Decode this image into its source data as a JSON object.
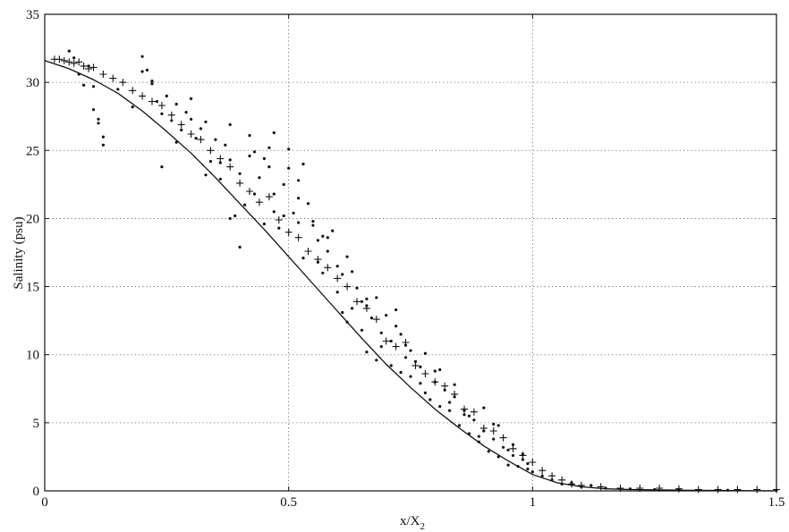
{
  "chart_data": {
    "type": "scatter",
    "title": "",
    "xlabel_main": "x/X",
    "xlabel_sub": "2",
    "ylabel": "Salinity (psu)",
    "xlim": [
      0,
      1.5
    ],
    "ylim": [
      0,
      35
    ],
    "grid": true,
    "x_ticks": [
      0,
      0.5,
      1,
      1.5
    ],
    "x_tick_labels": [
      "0",
      "0.5",
      "1",
      "1.5"
    ],
    "y_ticks": [
      0,
      5,
      10,
      15,
      20,
      25,
      30,
      35
    ],
    "y_tick_labels": [
      "0",
      "5",
      "10",
      "15",
      "20",
      "25",
      "30",
      "35"
    ],
    "curve": {
      "x": [
        0,
        0.05,
        0.1,
        0.15,
        0.2,
        0.25,
        0.3,
        0.35,
        0.4,
        0.45,
        0.5,
        0.55,
        0.6,
        0.65,
        0.7,
        0.75,
        0.8,
        0.85,
        0.9,
        0.95,
        1.0,
        1.05,
        1.1,
        1.15,
        1.2,
        1.3,
        1.4,
        1.5
      ],
      "y": [
        31.6,
        31.0,
        30.2,
        29.2,
        27.9,
        26.4,
        24.8,
        23.0,
        21.1,
        19.2,
        17.2,
        15.2,
        13.2,
        11.2,
        9.3,
        7.6,
        6.0,
        4.6,
        3.3,
        2.2,
        1.2,
        0.6,
        0.3,
        0.15,
        0.1,
        0.05,
        0.02,
        0.0
      ]
    },
    "series": [
      {
        "marker": "plus",
        "x": [
          0.02,
          0.03,
          0.04,
          0.05,
          0.06,
          0.07,
          0.08,
          0.09,
          0.1,
          0.12,
          0.14,
          0.16,
          0.18,
          0.2,
          0.22,
          0.24,
          0.26,
          0.28,
          0.3,
          0.32,
          0.34,
          0.36,
          0.38,
          0.4,
          0.42,
          0.44,
          0.46,
          0.48,
          0.5,
          0.52,
          0.54,
          0.56,
          0.58,
          0.6,
          0.62,
          0.64,
          0.66,
          0.68,
          0.7,
          0.72,
          0.74,
          0.76,
          0.78,
          0.8,
          0.82,
          0.84,
          0.86,
          0.88,
          0.9,
          0.92,
          0.94,
          0.96,
          0.98,
          1.0,
          1.02,
          1.04,
          1.06,
          1.08,
          1.1,
          1.14,
          1.18,
          1.22,
          1.26,
          1.3,
          1.34,
          1.38,
          1.42,
          1.46,
          1.5
        ],
        "y": [
          31.7,
          31.7,
          31.6,
          31.5,
          31.4,
          31.5,
          31.2,
          31.0,
          31.1,
          30.6,
          30.3,
          30.0,
          29.4,
          29.0,
          28.6,
          28.3,
          27.6,
          26.9,
          26.2,
          25.8,
          25.0,
          24.4,
          23.8,
          22.6,
          22.0,
          21.2,
          21.6,
          19.9,
          19.0,
          18.6,
          17.6,
          17.0,
          16.4,
          15.6,
          15.0,
          13.9,
          13.4,
          12.6,
          11.0,
          10.6,
          10.9,
          9.2,
          8.6,
          8.0,
          7.7,
          7.1,
          6.0,
          5.8,
          4.6,
          4.4,
          3.9,
          3.1,
          2.6,
          2.1,
          1.5,
          1.1,
          0.8,
          0.5,
          0.4,
          0.3,
          0.2,
          0.2,
          0.2,
          0.15,
          0.1,
          0.1,
          0.1,
          0.1,
          0.1
        ]
      },
      {
        "marker": "dot",
        "x": [
          0.05,
          0.06,
          0.07,
          0.08,
          0.09,
          0.1,
          0.11,
          0.12,
          0.15,
          0.18,
          0.2,
          0.21,
          0.22,
          0.23,
          0.24,
          0.25,
          0.26,
          0.27,
          0.28,
          0.29,
          0.3,
          0.31,
          0.32,
          0.33,
          0.34,
          0.35,
          0.36,
          0.37,
          0.38,
          0.39,
          0.4,
          0.41,
          0.42,
          0.43,
          0.44,
          0.45,
          0.46,
          0.47,
          0.48,
          0.49,
          0.5,
          0.51,
          0.52,
          0.53,
          0.54,
          0.55,
          0.56,
          0.57,
          0.58,
          0.59,
          0.6,
          0.61,
          0.62,
          0.63,
          0.64,
          0.65,
          0.66,
          0.67,
          0.68,
          0.69,
          0.7,
          0.71,
          0.72,
          0.73,
          0.74,
          0.75,
          0.76,
          0.77,
          0.78,
          0.79,
          0.8,
          0.81,
          0.82,
          0.83,
          0.84,
          0.85,
          0.86,
          0.87,
          0.88,
          0.89,
          0.9,
          0.91,
          0.92,
          0.93,
          0.94,
          0.95,
          0.96,
          0.97,
          0.98,
          0.99,
          1.0,
          1.02,
          1.04,
          1.06,
          1.08,
          1.1,
          1.12,
          1.15,
          1.2,
          1.25,
          1.3,
          1.4,
          1.5,
          0.1,
          0.11,
          0.12,
          0.2,
          0.22,
          0.24,
          0.27,
          0.3,
          0.33,
          0.36,
          0.38,
          0.4,
          0.43,
          0.46,
          0.47,
          0.5,
          0.52,
          0.55,
          0.58,
          0.6,
          0.63,
          0.66,
          0.69,
          0.72,
          0.75,
          0.78,
          0.81,
          0.84,
          0.87,
          0.9,
          0.93,
          0.96,
          0.99,
          0.47,
          0.49,
          0.53,
          0.57,
          0.61,
          0.65,
          0.68,
          0.71,
          0.74,
          0.77,
          0.8,
          0.83,
          0.86,
          0.89,
          0.92,
          0.95,
          0.98,
          0.38,
          0.42,
          0.45,
          0.52,
          0.56,
          0.62,
          0.66,
          0.73
        ],
        "y": [
          32.3,
          31.8,
          30.6,
          29.8,
          31.2,
          28.0,
          27.3,
          25.4,
          29.5,
          28.2,
          31.9,
          30.9,
          30.1,
          28.6,
          23.8,
          29.0,
          27.2,
          28.4,
          26.5,
          27.8,
          28.8,
          25.9,
          26.6,
          27.1,
          24.2,
          25.8,
          22.9,
          25.4,
          24.3,
          20.2,
          23.3,
          21.0,
          24.6,
          21.8,
          23.0,
          19.6,
          25.2,
          21.8,
          19.3,
          20.2,
          23.7,
          20.4,
          22.8,
          17.1,
          21.1,
          19.5,
          18.4,
          16.0,
          17.6,
          19.1,
          14.6,
          15.9,
          17.2,
          13.4,
          14.9,
          11.8,
          13.6,
          12.7,
          14.2,
          10.6,
          12.9,
          9.2,
          12.1,
          11.5,
          9.8,
          8.4,
          9.5,
          7.9,
          10.1,
          6.7,
          8.8,
          6.2,
          7.4,
          5.9,
          6.9,
          4.8,
          5.6,
          4.2,
          5.2,
          3.6,
          4.4,
          2.9,
          3.8,
          2.5,
          3.2,
          1.9,
          2.6,
          1.8,
          2.3,
          1.6,
          1.4,
          1.1,
          0.8,
          0.5,
          0.6,
          0.3,
          0.4,
          0.2,
          0.15,
          0.1,
          0.1,
          0.05,
          0.05,
          29.7,
          27.0,
          26.0,
          30.8,
          29.9,
          27.7,
          25.6,
          27.3,
          23.2,
          24.1,
          20.0,
          17.9,
          24.9,
          23.8,
          20.5,
          25.1,
          21.5,
          19.8,
          18.6,
          16.5,
          16.1,
          14.1,
          11.6,
          13.3,
          10.3,
          7.2,
          8.9,
          7.8,
          5.5,
          6.1,
          4.8,
          3.4,
          2.0,
          26.3,
          22.5,
          24.0,
          18.7,
          13.1,
          13.9,
          9.6,
          11.0,
          10.7,
          9.1,
          8.0,
          6.5,
          5.9,
          4.0,
          4.9,
          3.0,
          2.7,
          26.9,
          26.1,
          24.4,
          19.7,
          16.8,
          12.4,
          10.2,
          8.7
        ]
      }
    ]
  }
}
